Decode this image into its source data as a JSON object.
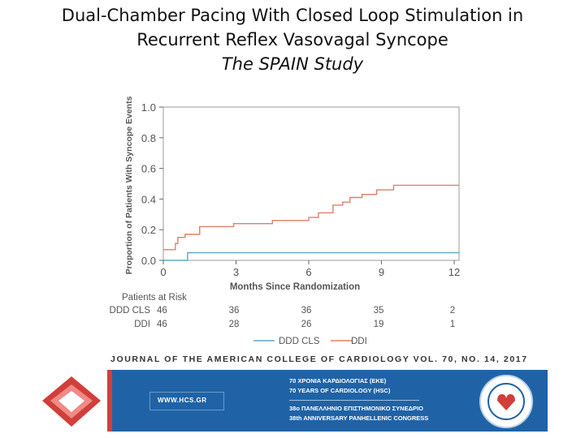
{
  "title": {
    "line1": "Dual-Chamber Pacing With Closed Loop Stimulation in",
    "line2": "Recurrent Reflex Vasovagal Syncope",
    "line3": "The SPAIN Study"
  },
  "chart_data": {
    "type": "line",
    "subtype": "kaplan-meier-step",
    "xlabel": "Months Since Randomization",
    "ylabel": "Proportion of Patients With Syncope Events",
    "xlim": [
      0,
      12.2
    ],
    "ylim": [
      0,
      1.0
    ],
    "x_ticks": [
      "0",
      "3",
      "6",
      "9",
      "12"
    ],
    "y_ticks": [
      "0.0",
      "0.2",
      "0.4",
      "0.6",
      "0.8",
      "1.0"
    ],
    "series": [
      {
        "name": "DDD CLS",
        "color": "#5aa9c4",
        "x": [
          0,
          1,
          1,
          12.2
        ],
        "y": [
          0,
          0,
          0.05,
          0.05
        ]
      },
      {
        "name": "DDI",
        "color": "#e07f67",
        "x": [
          0,
          0.5,
          0.6,
          0.9,
          1.5,
          2.9,
          4.5,
          6.0,
          6.4,
          7.0,
          7.4,
          7.7,
          8.2,
          8.8,
          9.5,
          12.2
        ],
        "y": [
          0.07,
          0.11,
          0.15,
          0.17,
          0.22,
          0.24,
          0.26,
          0.28,
          0.31,
          0.36,
          0.38,
          0.41,
          0.43,
          0.46,
          0.49,
          0.49
        ]
      }
    ],
    "risk_table": {
      "header": "Patients at Risk",
      "rows": [
        {
          "label": "DDD CLS",
          "values": [
            "46",
            "36",
            "36",
            "35",
            "2"
          ]
        },
        {
          "label": "DDI",
          "values": [
            "46",
            "28",
            "26",
            "19",
            "1"
          ]
        }
      ]
    },
    "legend": {
      "placement": "bottom-center",
      "items": [
        "DDD CLS",
        "DDI"
      ]
    }
  },
  "citation": "JOURNAL OF THE AMERICAN COLLEGE OF CARDIOLOGY VOL. 70, NO. 14, 2017",
  "banner": {
    "url": "WWW.HCS.GR",
    "line1": "70 ΧΡΟΝΙΑ ΚΑΡΔΙΟΛΟΓΙΑΣ (ΕΚΕ)",
    "line2": "70 YEARS OF CARDIOLOGY (HSC)",
    "line3": "38ο ΠΑΝΕΛΛΗΝΙΟ ΕΠΙΣΤΗΜΟΝΙΚΟ ΣΥΝΕΔΡΙΟ",
    "line4": "38th ANNIVERSARY PANHELLENIC CONGRESS",
    "accent": "#d13f3a",
    "background": "#1f63a6"
  }
}
